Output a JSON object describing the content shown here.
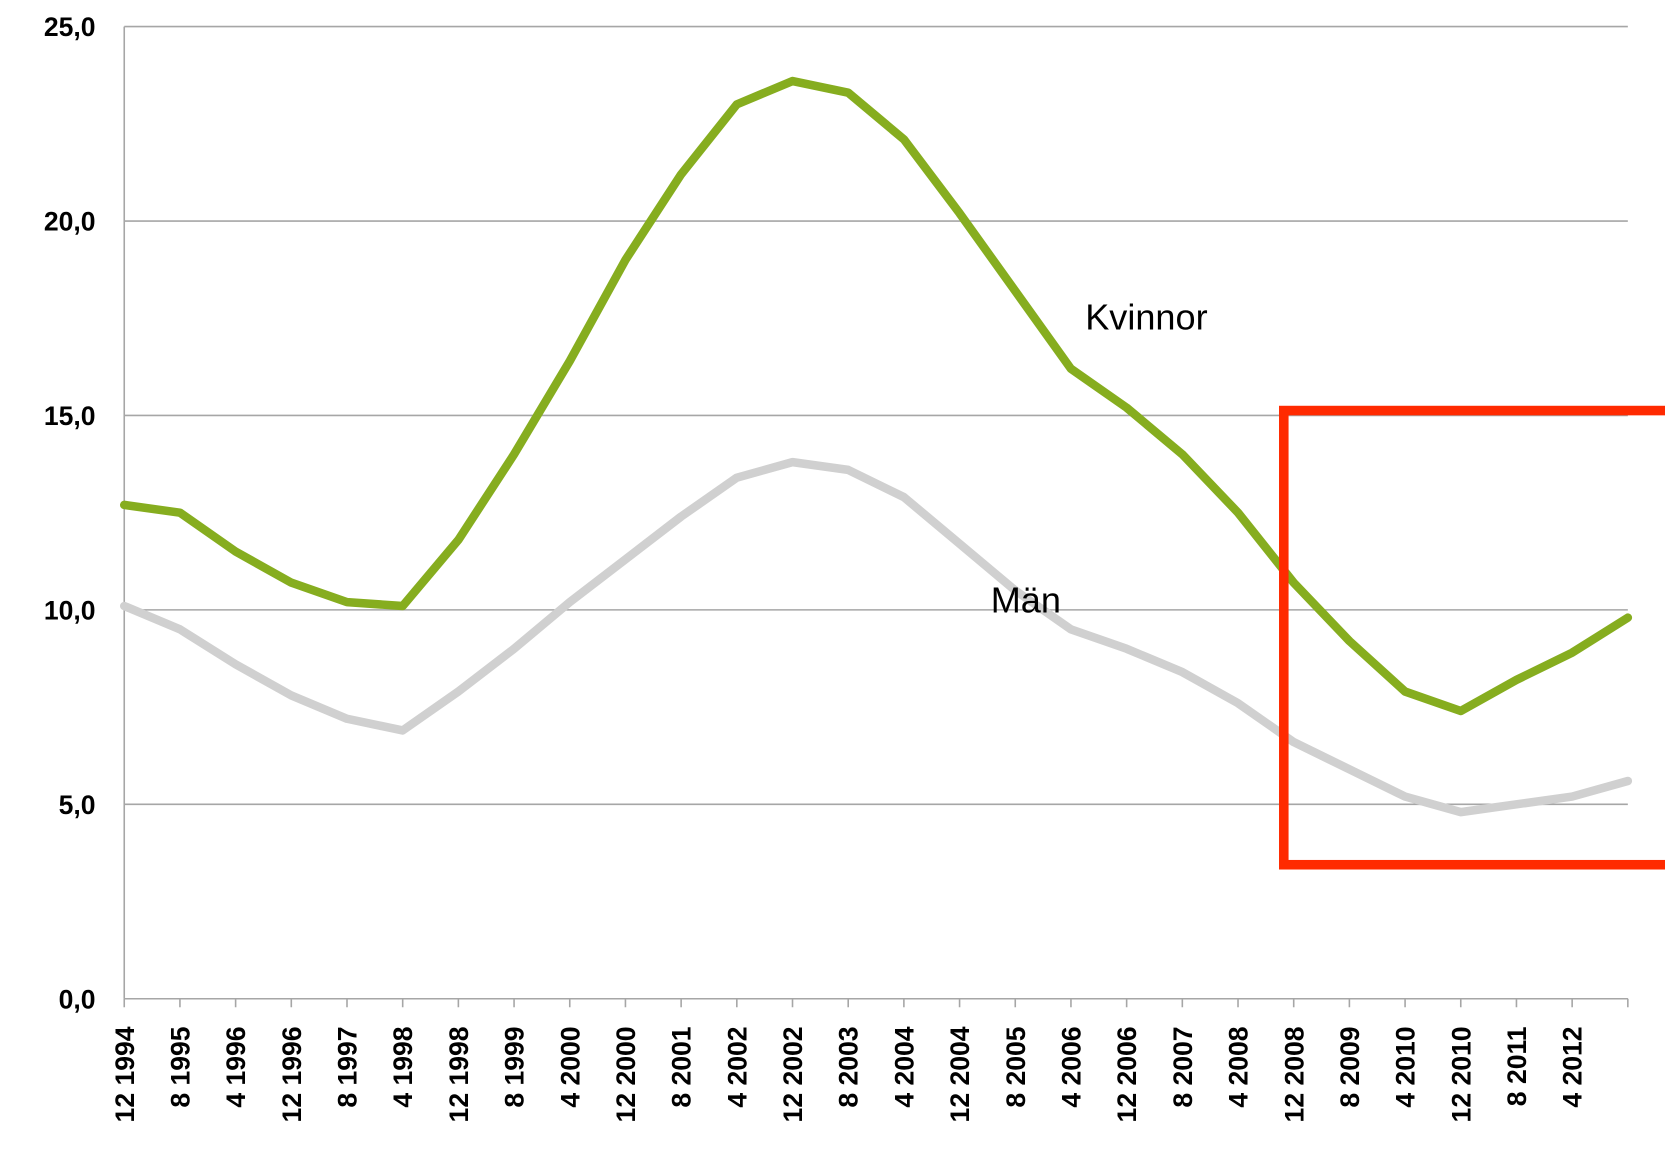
{
  "chart_data": {
    "type": "line",
    "categories": [
      "12 1994",
      "8 1995",
      "4 1996",
      "12 1996",
      "8 1997",
      "4 1998",
      "12 1998",
      "8 1999",
      "4 2000",
      "12 2000",
      "8 2001",
      "4 2002",
      "12 2002",
      "8 2003",
      "4 2004",
      "12 2004",
      "8 2005",
      "4 2006",
      "12 2006",
      "8 2007",
      "4 2008",
      "12 2008",
      "8 2009",
      "4 2010",
      "12 2010",
      "8 2011",
      "4 2012",
      null
    ],
    "series": [
      {
        "name": "Kvinnor",
        "color": "#86ad1f",
        "values": [
          12.7,
          12.5,
          11.5,
          10.7,
          10.2,
          10.1,
          11.8,
          14.0,
          16.4,
          19.0,
          21.2,
          23.0,
          23.6,
          23.3,
          22.1,
          20.2,
          18.2,
          16.2,
          15.2,
          14.0,
          12.5,
          10.7,
          9.2,
          7.9,
          7.4,
          8.2,
          8.9,
          9.8
        ]
      },
      {
        "name": "Män",
        "color": "#d0d0d0",
        "values": [
          10.1,
          9.5,
          8.6,
          7.8,
          7.2,
          6.9,
          7.9,
          9.0,
          10.2,
          11.3,
          12.4,
          13.4,
          13.8,
          13.6,
          12.9,
          11.7,
          10.5,
          9.5,
          9.0,
          8.4,
          7.6,
          6.6,
          5.9,
          5.2,
          4.8,
          5.0,
          5.2,
          5.6
        ]
      }
    ],
    "ylim": [
      0,
      25
    ],
    "yticks": [
      {
        "value": 0,
        "label": "0,0"
      },
      {
        "value": 5,
        "label": "5,0"
      },
      {
        "value": 10,
        "label": "10,0"
      },
      {
        "value": 15,
        "label": "15,0"
      },
      {
        "value": 20,
        "label": "20,0"
      },
      {
        "value": 25,
        "label": "25,0"
      }
    ],
    "grid": true
  }
}
